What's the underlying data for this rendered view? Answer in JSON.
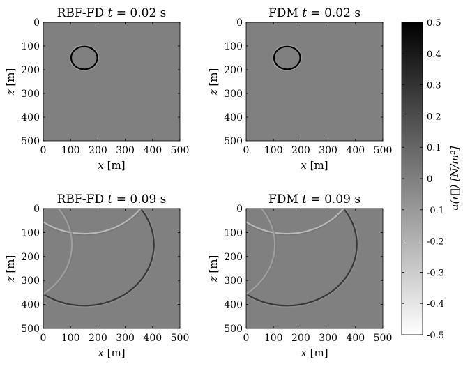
{
  "chart_data": [
    {
      "type": "heatmap",
      "title": "RBF-FD t = 0.02 s",
      "xlabel": "x [m]",
      "ylabel": "z [m]",
      "xlim": [
        0,
        500
      ],
      "ylim": [
        500,
        0
      ],
      "xticks": [
        "0",
        "100",
        "200",
        "300",
        "400",
        "500"
      ],
      "yticks": [
        "0",
        "100",
        "200",
        "300",
        "400",
        "500"
      ],
      "wavefronts": [
        {
          "kind": "direct",
          "center_x": 150,
          "center_z": 150,
          "radius": 48,
          "amplitude": 0.5
        }
      ]
    },
    {
      "type": "heatmap",
      "title": "FDM t = 0.02 s",
      "xlabel": "x [m]",
      "ylabel": "z [m]",
      "xlim": [
        0,
        500
      ],
      "ylim": [
        500,
        0
      ],
      "xticks": [
        "0",
        "100",
        "200",
        "300",
        "400",
        "500"
      ],
      "yticks": [
        "0",
        "100",
        "200",
        "300",
        "400",
        "500"
      ],
      "wavefronts": [
        {
          "kind": "direct",
          "center_x": 150,
          "center_z": 150,
          "radius": 48,
          "amplitude": 0.5
        }
      ]
    },
    {
      "type": "heatmap",
      "title": "RBF-FD t = 0.09 s",
      "xlabel": "x [m]",
      "ylabel": "z [m]",
      "xlim": [
        0,
        500
      ],
      "ylim": [
        500,
        0
      ],
      "xticks": [
        "0",
        "100",
        "200",
        "300",
        "400",
        "500"
      ],
      "yticks": [
        "0",
        "100",
        "200",
        "300",
        "400",
        "500"
      ],
      "wavefronts": [
        {
          "kind": "direct",
          "center_x": 150,
          "center_z": 150,
          "radius": 255,
          "amplitude": 0.28
        },
        {
          "kind": "reflection-top",
          "center_x": 150,
          "center_z": -150,
          "radius": 255,
          "amplitude": -0.22
        },
        {
          "kind": "reflection-left",
          "center_x": -150,
          "center_z": 150,
          "radius": 255,
          "amplitude": -0.12
        }
      ]
    },
    {
      "type": "heatmap",
      "title": "FDM t = 0.09 s",
      "xlabel": "x [m]",
      "ylabel": "z [m]",
      "xlim": [
        0,
        500
      ],
      "ylim": [
        500,
        0
      ],
      "xticks": [
        "0",
        "100",
        "200",
        "300",
        "400",
        "500"
      ],
      "yticks": [
        "0",
        "100",
        "200",
        "300",
        "400",
        "500"
      ],
      "wavefronts": [
        {
          "kind": "direct",
          "center_x": 150,
          "center_z": 150,
          "radius": 255,
          "amplitude": 0.28
        },
        {
          "kind": "reflection-top",
          "center_x": 150,
          "center_z": -150,
          "radius": 255,
          "amplitude": -0.22
        },
        {
          "kind": "reflection-left",
          "center_x": -150,
          "center_z": 150,
          "radius": 255,
          "amplitude": -0.12
        }
      ]
    }
  ],
  "colorbar": {
    "label": "u(r⃗) [N/m²]",
    "min": -0.5,
    "max": 0.5,
    "ticks": [
      "0.5",
      "0.4",
      "0.3",
      "0.2",
      "0.1",
      "0",
      "-0.1",
      "-0.2",
      "-0.3",
      "-0.4",
      "-0.5"
    ],
    "colormap": "gray-reversed",
    "color_max": "#000000",
    "color_min": "#ffffff",
    "background_color": "#7a7a7a"
  }
}
